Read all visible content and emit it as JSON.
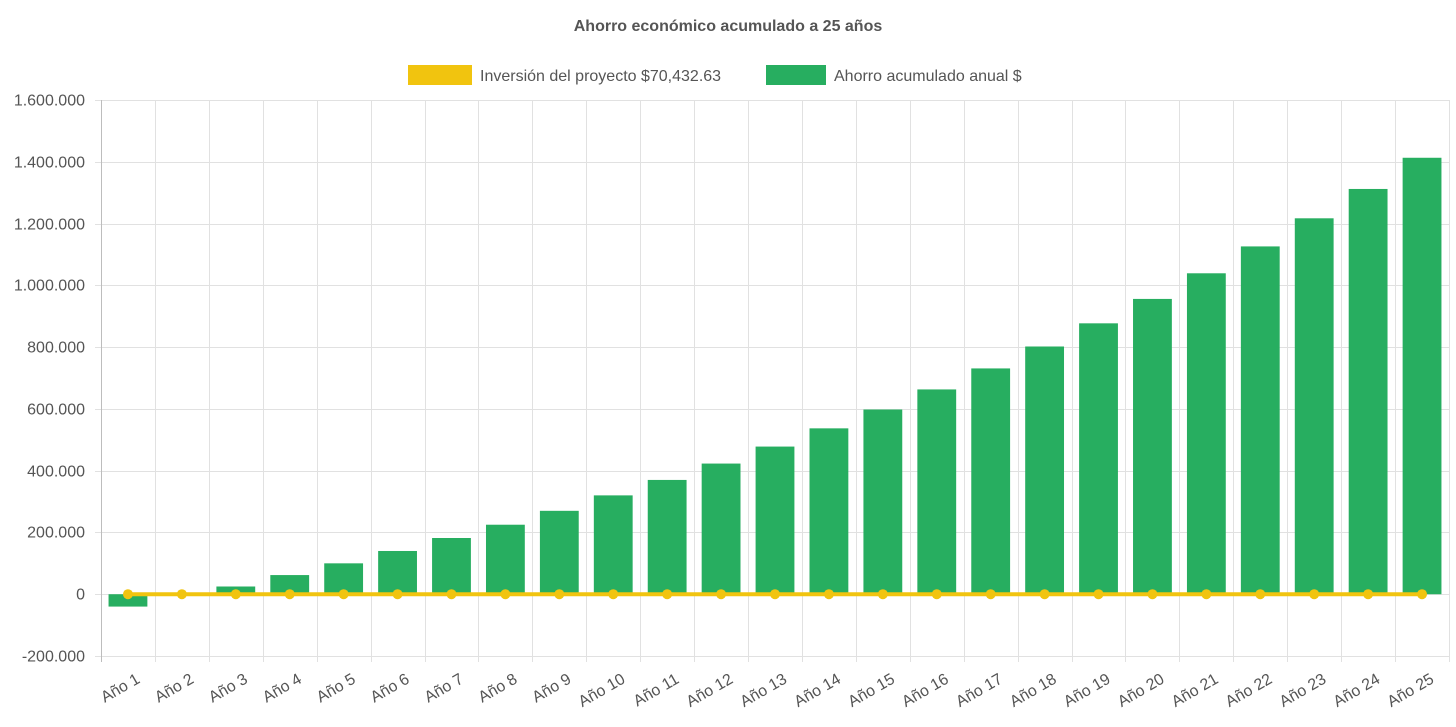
{
  "chart_data": {
    "type": "bar",
    "title": "Ahorro económico acumulado a 25 años",
    "categories": [
      "Año 1",
      "Año 2",
      "Año 3",
      "Año 4",
      "Año 5",
      "Año 6",
      "Año 7",
      "Año 8",
      "Año 9",
      "Año 10",
      "Año 11",
      "Año 12",
      "Año 13",
      "Año 14",
      "Año 15",
      "Año 16",
      "Año 17",
      "Año 18",
      "Año 19",
      "Año 20",
      "Año 21",
      "Año 22",
      "Año 23",
      "Año 24",
      "Año 25"
    ],
    "series": [
      {
        "name": "Inversión del proyecto $70,432.63",
        "type": "line",
        "color": "#f1c40f",
        "values": [
          0,
          0,
          0,
          0,
          0,
          0,
          0,
          0,
          0,
          0,
          0,
          0,
          0,
          0,
          0,
          0,
          0,
          0,
          0,
          0,
          0,
          0,
          0,
          0,
          0
        ]
      },
      {
        "name": "Ahorro acumulado anual $",
        "type": "bar",
        "color": "#27ae60",
        "values": [
          -40000,
          -3000,
          25000,
          62000,
          100000,
          140000,
          182000,
          225000,
          270000,
          320000,
          370000,
          423000,
          478000,
          537000,
          598000,
          663000,
          731000,
          802000,
          877000,
          956000,
          1039000,
          1126000,
          1217000,
          1312000,
          1413000
        ]
      }
    ],
    "ylim": [
      -200000,
      1600000
    ],
    "yticks": [
      -200000,
      0,
      200000,
      400000,
      600000,
      800000,
      1000000,
      1200000,
      1400000,
      1600000
    ],
    "ytick_labels": [
      "-200.000",
      "0",
      "200.000",
      "400.000",
      "600.000",
      "800.000",
      "1.000.000",
      "1.200.000",
      "1.400.000",
      "1.600.000"
    ],
    "xlabel": "",
    "ylabel": "",
    "grid": true,
    "legend_position": "top"
  }
}
